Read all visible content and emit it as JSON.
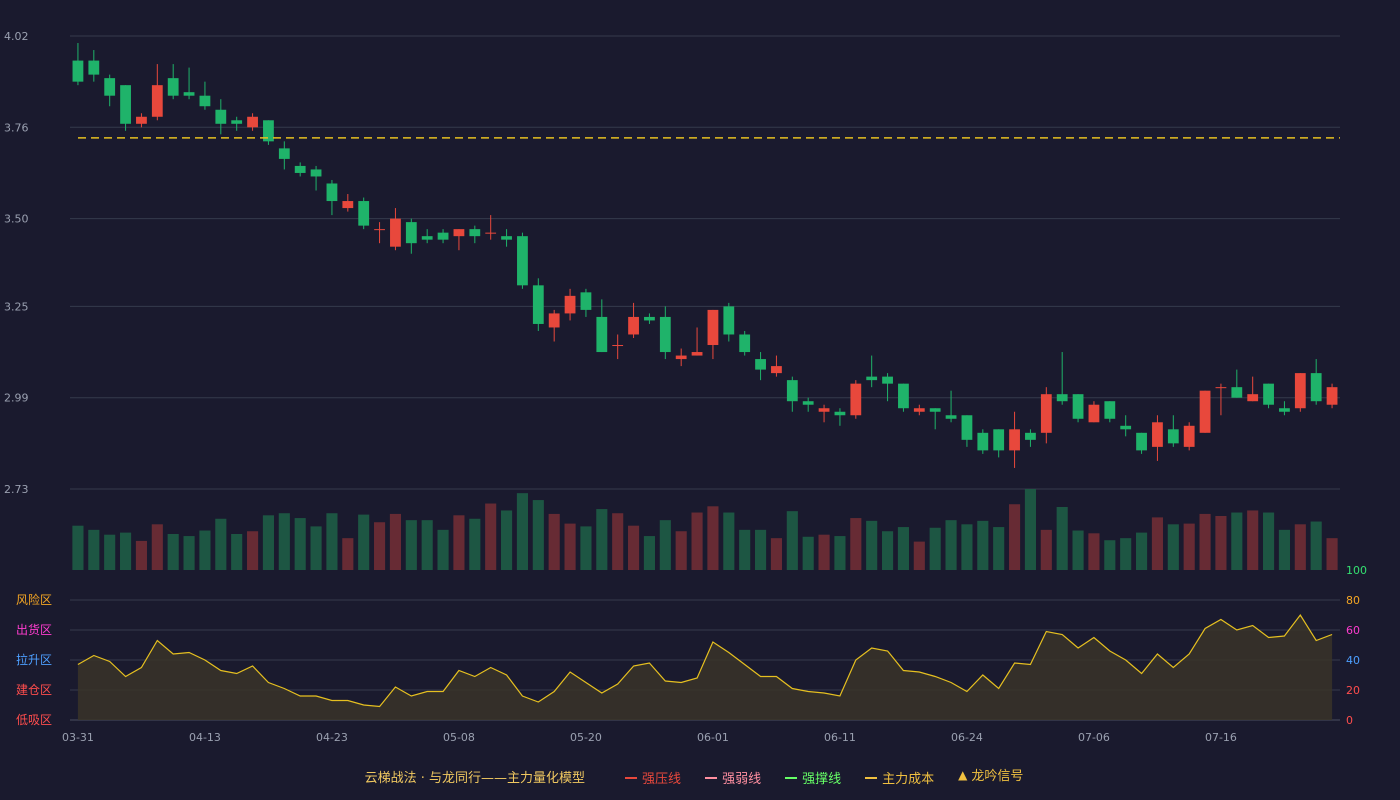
{
  "colors": {
    "up": "#e8483c",
    "down": "#1fb36a",
    "background": "#1a1a2e",
    "grid": "#353a4c",
    "axis_text": "#9aa0b0",
    "cost_line": "#e6c020",
    "indicator_line": "#e6c020"
  },
  "legend": {
    "title": "云梯战法 · 与龙同行——主力量化模型",
    "items": [
      {
        "label": "强压线",
        "color": "#e8483c",
        "style": "solid"
      },
      {
        "label": "强弱线",
        "color": "#ff8fa0",
        "style": "dash"
      },
      {
        "label": "强撑线",
        "color": "#66ff66",
        "style": "solid"
      },
      {
        "label": "主力成本",
        "color": "#f0c040",
        "style": "dash"
      },
      {
        "label": "龙吟信号",
        "color": "#f0c040",
        "style": "triangle",
        "icon": "triangle-up-icon"
      }
    ]
  },
  "chart_data": {
    "type": "candlestick",
    "price_ticks": [
      "4.02",
      "3.76",
      "3.50",
      "3.25",
      "2.99",
      "2.73"
    ],
    "price_range": [
      2.73,
      4.02
    ],
    "x_labels": [
      {
        "i": 0,
        "label": "03-31"
      },
      {
        "i": 8,
        "label": "04-13"
      },
      {
        "i": 16,
        "label": "04-23"
      },
      {
        "i": 24,
        "label": "05-08"
      },
      {
        "i": 32,
        "label": "05-20"
      },
      {
        "i": 40,
        "label": "06-01"
      },
      {
        "i": 48,
        "label": "06-11"
      },
      {
        "i": 56,
        "label": "06-24"
      },
      {
        "i": 64,
        "label": "07-06"
      },
      {
        "i": 72,
        "label": "07-16"
      }
    ],
    "cost_line": 3.73,
    "candles": [
      [
        3.95,
        3.89,
        4.0,
        3.88
      ],
      [
        3.95,
        3.91,
        3.98,
        3.89
      ],
      [
        3.9,
        3.85,
        3.91,
        3.82
      ],
      [
        3.88,
        3.77,
        3.88,
        3.75
      ],
      [
        3.77,
        3.79,
        3.8,
        3.76
      ],
      [
        3.79,
        3.88,
        3.94,
        3.78
      ],
      [
        3.9,
        3.85,
        3.94,
        3.84
      ],
      [
        3.86,
        3.85,
        3.93,
        3.84
      ],
      [
        3.85,
        3.82,
        3.89,
        3.81
      ],
      [
        3.81,
        3.77,
        3.84,
        3.74
      ],
      [
        3.78,
        3.77,
        3.79,
        3.75
      ],
      [
        3.76,
        3.79,
        3.8,
        3.75
      ],
      [
        3.78,
        3.72,
        3.78,
        3.71
      ],
      [
        3.7,
        3.67,
        3.72,
        3.64
      ],
      [
        3.65,
        3.63,
        3.66,
        3.62
      ],
      [
        3.64,
        3.62,
        3.65,
        3.58
      ],
      [
        3.6,
        3.55,
        3.61,
        3.51
      ],
      [
        3.53,
        3.55,
        3.57,
        3.52
      ],
      [
        3.55,
        3.48,
        3.56,
        3.47
      ],
      [
        3.47,
        3.47,
        3.49,
        3.43
      ],
      [
        3.42,
        3.5,
        3.53,
        3.41
      ],
      [
        3.49,
        3.43,
        3.5,
        3.4
      ],
      [
        3.45,
        3.44,
        3.47,
        3.43
      ],
      [
        3.46,
        3.44,
        3.47,
        3.43
      ],
      [
        3.45,
        3.47,
        3.47,
        3.41
      ],
      [
        3.47,
        3.45,
        3.48,
        3.43
      ],
      [
        3.46,
        3.46,
        3.51,
        3.44
      ],
      [
        3.45,
        3.44,
        3.47,
        3.42
      ],
      [
        3.45,
        3.31,
        3.46,
        3.3
      ],
      [
        3.31,
        3.2,
        3.33,
        3.18
      ],
      [
        3.19,
        3.23,
        3.24,
        3.15
      ],
      [
        3.23,
        3.28,
        3.3,
        3.21
      ],
      [
        3.29,
        3.24,
        3.3,
        3.22
      ],
      [
        3.22,
        3.12,
        3.27,
        3.12
      ],
      [
        3.14,
        3.14,
        3.17,
        3.1
      ],
      [
        3.17,
        3.22,
        3.26,
        3.16
      ],
      [
        3.22,
        3.21,
        3.23,
        3.2
      ],
      [
        3.22,
        3.12,
        3.25,
        3.1
      ],
      [
        3.1,
        3.11,
        3.13,
        3.08
      ],
      [
        3.11,
        3.12,
        3.19,
        3.11
      ],
      [
        3.14,
        3.24,
        3.24,
        3.1
      ],
      [
        3.25,
        3.17,
        3.26,
        3.15
      ],
      [
        3.17,
        3.12,
        3.18,
        3.11
      ],
      [
        3.1,
        3.07,
        3.12,
        3.04
      ],
      [
        3.06,
        3.08,
        3.11,
        3.05
      ],
      [
        3.04,
        2.98,
        3.05,
        2.95
      ],
      [
        2.98,
        2.97,
        2.99,
        2.95
      ],
      [
        2.95,
        2.96,
        2.97,
        2.92
      ],
      [
        2.95,
        2.94,
        2.96,
        2.91
      ],
      [
        2.94,
        3.03,
        3.04,
        2.93
      ],
      [
        3.05,
        3.04,
        3.11,
        3.02
      ],
      [
        3.05,
        3.03,
        3.06,
        2.98
      ],
      [
        3.03,
        2.96,
        3.03,
        2.95
      ],
      [
        2.95,
        2.96,
        2.97,
        2.94
      ],
      [
        2.96,
        2.95,
        2.96,
        2.9
      ],
      [
        2.94,
        2.93,
        3.01,
        2.92
      ],
      [
        2.94,
        2.87,
        2.94,
        2.85
      ],
      [
        2.89,
        2.84,
        2.9,
        2.83
      ],
      [
        2.9,
        2.84,
        2.9,
        2.82
      ],
      [
        2.84,
        2.9,
        2.95,
        2.79
      ],
      [
        2.89,
        2.87,
        2.9,
        2.85
      ],
      [
        2.89,
        3.0,
        3.02,
        2.86
      ],
      [
        3.0,
        2.98,
        3.12,
        2.97
      ],
      [
        3.0,
        2.93,
        3.0,
        2.92
      ],
      [
        2.92,
        2.97,
        2.98,
        2.92
      ],
      [
        2.98,
        2.93,
        2.98,
        2.92
      ],
      [
        2.91,
        2.9,
        2.94,
        2.88
      ],
      [
        2.89,
        2.84,
        2.89,
        2.83
      ],
      [
        2.85,
        2.92,
        2.94,
        2.81
      ],
      [
        2.9,
        2.86,
        2.94,
        2.85
      ],
      [
        2.85,
        2.91,
        2.92,
        2.84
      ],
      [
        2.89,
        3.01,
        3.01,
        2.89
      ],
      [
        3.02,
        3.02,
        3.03,
        2.94
      ],
      [
        3.02,
        2.99,
        3.07,
        2.99
      ],
      [
        2.98,
        3.0,
        3.05,
        2.98
      ],
      [
        3.03,
        2.97,
        3.03,
        2.96
      ],
      [
        2.96,
        2.95,
        2.98,
        2.94
      ],
      [
        2.96,
        3.06,
        3.06,
        2.95
      ],
      [
        3.06,
        2.98,
        3.1,
        2.97
      ],
      [
        2.97,
        3.02,
        3.03,
        2.96
      ]
    ],
    "volumes": [
      64,
      58,
      51,
      54,
      42,
      66,
      52,
      49,
      57,
      74,
      52,
      56,
      79,
      82,
      75,
      63,
      82,
      46,
      80,
      69,
      81,
      72,
      72,
      58,
      79,
      74,
      96,
      86,
      111,
      101,
      81,
      67,
      63,
      88,
      82,
      64,
      49,
      72,
      56,
      83,
      92,
      83,
      58,
      58,
      46,
      85,
      48,
      51,
      49,
      75,
      71,
      56,
      62,
      41,
      61,
      72,
      66,
      71,
      62,
      95,
      117,
      58,
      91,
      57,
      53,
      43,
      46,
      54,
      76,
      66,
      67,
      81,
      78,
      83,
      86,
      83,
      58,
      66,
      70,
      46
    ],
    "indicator": {
      "range": [
        0,
        100
      ],
      "ticks": [
        "0",
        "20",
        "40",
        "60",
        "80",
        "100"
      ],
      "tick_colors": [
        "#ff4d4d",
        "#ff4d4d",
        "#4d9fff",
        "#ff3ccf",
        "#f5a623",
        "#33e070"
      ],
      "zones": [
        {
          "label": "低吸区",
          "value": 0,
          "color": "#ff4d4d"
        },
        {
          "label": "建仓区",
          "value": 20,
          "color": "#ff4d4d"
        },
        {
          "label": "拉升区",
          "value": 40,
          "color": "#4d9fff"
        },
        {
          "label": "出货区",
          "value": 60,
          "color": "#ff3ccf"
        },
        {
          "label": "风险区",
          "value": 80,
          "color": "#f5a623"
        }
      ],
      "values": [
        37,
        43,
        39,
        29,
        35,
        53,
        44,
        45,
        40,
        33,
        31,
        36,
        25,
        21,
        16,
        16,
        13,
        13,
        10,
        9,
        22,
        16,
        19,
        19,
        33,
        29,
        35,
        30,
        16,
        12,
        19,
        32,
        25,
        18,
        24,
        36,
        38,
        26,
        25,
        28,
        52,
        45,
        37,
        29,
        29,
        21,
        19,
        18,
        16,
        40,
        48,
        46,
        33,
        32,
        29,
        25,
        19,
        30,
        21,
        38,
        37,
        59,
        57,
        48,
        55,
        46,
        40,
        31,
        44,
        35,
        44,
        61,
        67,
        60,
        63,
        55,
        56,
        70,
        53,
        57
      ]
    }
  }
}
